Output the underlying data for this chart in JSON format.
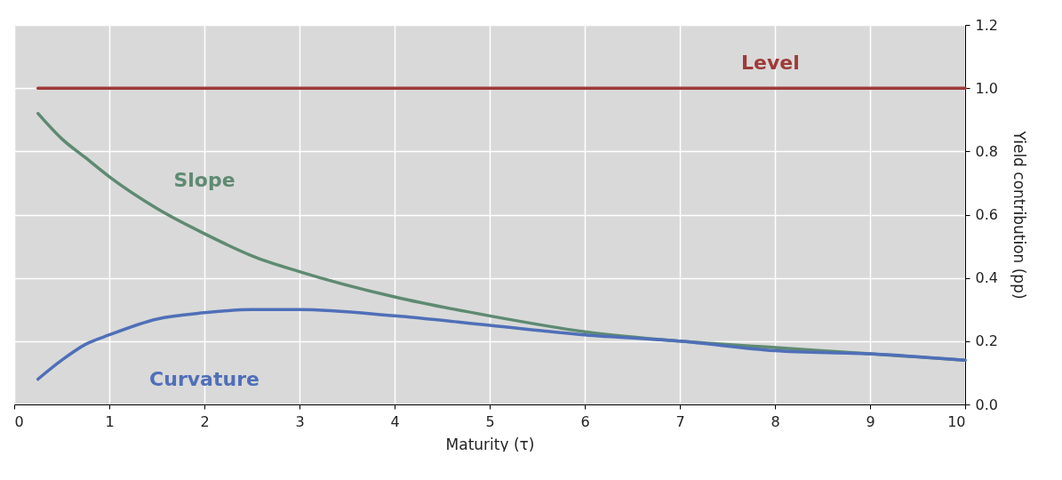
{
  "chart_data": {
    "type": "line",
    "xlabel": "Maturity (τ)",
    "ylabel": "Yield contribution (pp)",
    "xlim": [
      0,
      10
    ],
    "xticks": [
      0,
      1,
      2,
      3,
      4,
      5,
      6,
      7,
      8,
      9,
      10
    ],
    "ylim": [
      0,
      1.2
    ],
    "yticks": [
      {
        "value": 0,
        "label": "0.0"
      },
      {
        "value": 0.2,
        "label": "0.2"
      },
      {
        "value": 0.4,
        "label": "0.4"
      },
      {
        "value": 0.6,
        "label": "0.6"
      },
      {
        "value": 0.8,
        "label": "0.8"
      },
      {
        "value": 1,
        "label": "1.0"
      },
      {
        "value": 1.2,
        "label": "1.2"
      }
    ],
    "grid": true,
    "legend": false,
    "marker": "none",
    "line_style": "solid",
    "series": [
      {
        "name": "Level",
        "color": "#9e3b38",
        "x": [
          0.25,
          10
        ],
        "values": [
          1,
          1
        ]
      },
      {
        "name": "Slope",
        "color": "#5e8a72",
        "x": [
          0.25,
          0.5,
          0.75,
          1,
          1.5,
          2,
          2.5,
          3,
          4,
          5,
          6,
          7,
          8,
          9,
          10
        ],
        "values": [
          0.92,
          0.84,
          0.78,
          0.72,
          0.62,
          0.54,
          0.47,
          0.42,
          0.34,
          0.28,
          0.23,
          0.2,
          0.18,
          0.16,
          0.14
        ]
      },
      {
        "name": "Curvature",
        "color": "#4f6fb8",
        "x": [
          0.25,
          0.5,
          0.75,
          1,
          1.5,
          2,
          2.5,
          3,
          4,
          5,
          6,
          7,
          8,
          9,
          10
        ],
        "values": [
          0.08,
          0.14,
          0.19,
          0.22,
          0.27,
          0.29,
          0.3,
          0.3,
          0.28,
          0.25,
          0.22,
          0.2,
          0.17,
          0.16,
          0.14
        ]
      }
    ]
  }
}
